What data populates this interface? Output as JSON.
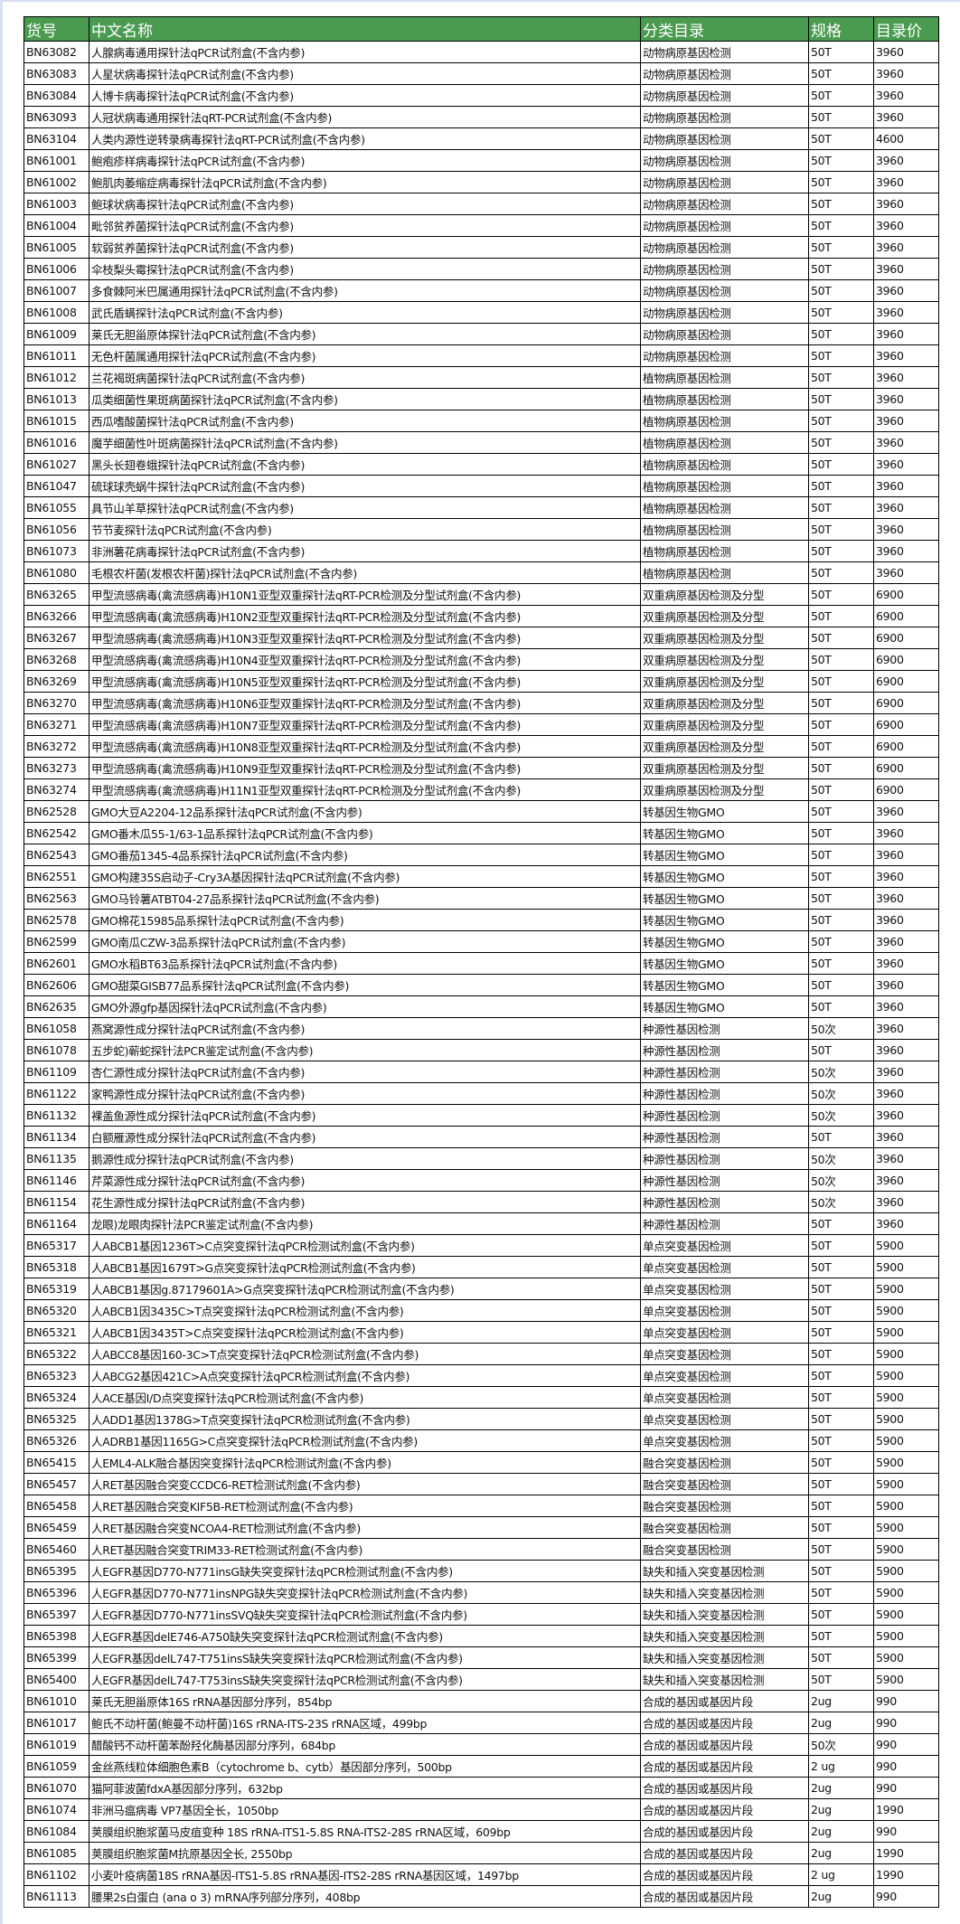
{
  "header": {
    "code": "货号",
    "name": "中文名称",
    "category": "分类目录",
    "spec": "规格",
    "price": "目录价"
  },
  "colors": {
    "header_bg": "#4a9b50",
    "header_text": "#ffffff"
  },
  "rows": [
    [
      "BN63082",
      "人腺病毒通用探针法qPCR试剂盒(不含内参)",
      "动物病原基因检测",
      "50T",
      "3960"
    ],
    [
      "BN63083",
      "人星状病毒探针法qPCR试剂盒(不含内参)",
      "动物病原基因检测",
      "50T",
      "3960"
    ],
    [
      "BN63084",
      "人博卡病毒探针法qPCR试剂盒(不含内参)",
      "动物病原基因检测",
      "50T",
      "3960"
    ],
    [
      "BN63093",
      "人冠状病毒通用探针法qRT-PCR试剂盒(不含内参)",
      "动物病原基因检测",
      "50T",
      "3960"
    ],
    [
      "BN63104",
      "人类内源性逆转录病毒探针法qRT-PCR试剂盒(不含内参)",
      "动物病原基因检测",
      "50T",
      "4600"
    ],
    [
      "BN61001",
      "鲍疱疹样病毒探针法qPCR试剂盒(不含内参)",
      "动物病原基因检测",
      "50T",
      "3960"
    ],
    [
      "BN61002",
      "鲍肌肉萎缩症病毒探针法qPCR试剂盒(不含内参)",
      "动物病原基因检测",
      "50T",
      "3960"
    ],
    [
      "BN61003",
      "鲍球状病毒探针法qPCR试剂盒(不含内参)",
      "动物病原基因检测",
      "50T",
      "3960"
    ],
    [
      "BN61004",
      "毗邻贫养菌探针法qPCR试剂盒(不含内参)",
      "动物病原基因检测",
      "50T",
      "3960"
    ],
    [
      "BN61005",
      "软弱贫养菌探针法qPCR试剂盒(不含内参)",
      "动物病原基因检测",
      "50T",
      "3960"
    ],
    [
      "BN61006",
      "伞枝梨头霉探针法qPCR试剂盒(不含内参)",
      "动物病原基因检测",
      "50T",
      "3960"
    ],
    [
      "BN61007",
      "多食棘阿米巴属通用探针法qPCR试剂盒(不含内参)",
      "动物病原基因检测",
      "50T",
      "3960"
    ],
    [
      "BN61008",
      "武氏盾螨探针法qPCR试剂盒(不含内参)",
      "动物病原基因检测",
      "50T",
      "3960"
    ],
    [
      "BN61009",
      "莱氏无胆甾原体探针法qPCR试剂盒(不含内参)",
      "动物病原基因检测",
      "50T",
      "3960"
    ],
    [
      "BN61011",
      "无色杆菌属通用探针法qPCR试剂盒(不含内参)",
      "动物病原基因检测",
      "50T",
      "3960"
    ],
    [
      "BN61012",
      "兰花褐斑病菌探针法qPCR试剂盒(不含内参)",
      "植物病原基因检测",
      "50T",
      "3960"
    ],
    [
      "BN61013",
      "瓜类细菌性果斑病菌探针法qPCR试剂盒(不含内参)",
      "植物病原基因检测",
      "50T",
      "3960"
    ],
    [
      "BN61015",
      "西瓜嗜酸菌探针法qPCR试剂盒(不含内参)",
      "植物病原基因检测",
      "50T",
      "3960"
    ],
    [
      "BN61016",
      "魔芋细菌性叶斑病菌探针法qPCR试剂盒(不含内参)",
      "植物病原基因检测",
      "50T",
      "3960"
    ],
    [
      "BN61027",
      "黑头长翅卷蛾探针法qPCR试剂盒(不含内参)",
      "植物病原基因检测",
      "50T",
      "3960"
    ],
    [
      "BN61047",
      "硫球球壳蜗牛探针法qPCR试剂盒(不含内参)",
      "植物病原基因检测",
      "50T",
      "3960"
    ],
    [
      "BN61055",
      "具节山羊草探针法qPCR试剂盒(不含内参)",
      "植物病原基因检测",
      "50T",
      "3960"
    ],
    [
      "BN61056",
      "节节麦探针法qPCR试剂盒(不含内参)",
      "植物病原基因检测",
      "50T",
      "3960"
    ],
    [
      "BN61073",
      "非洲薯花病毒探针法qPCR试剂盒(不含内参)",
      "植物病原基因检测",
      "50T",
      "3960"
    ],
    [
      "BN61080",
      "毛根农杆菌(发根农杆菌)探针法qPCR试剂盒(不含内参)",
      "植物病原基因检测",
      "50T",
      "3960"
    ],
    [
      "BN63265",
      "甲型流感病毒(禽流感病毒)H10N1亚型双重探针法qRT-PCR检测及分型试剂盒(不含内参)",
      "双重病原基因检测及分型",
      "50T",
      "6900"
    ],
    [
      "BN63266",
      "甲型流感病毒(禽流感病毒)H10N2亚型双重探针法qRT-PCR检测及分型试剂盒(不含内参)",
      "双重病原基因检测及分型",
      "50T",
      "6900"
    ],
    [
      "BN63267",
      "甲型流感病毒(禽流感病毒)H10N3亚型双重探针法qRT-PCR检测及分型试剂盒(不含内参)",
      "双重病原基因检测及分型",
      "50T",
      "6900"
    ],
    [
      "BN63268",
      "甲型流感病毒(禽流感病毒)H10N4亚型双重探针法qRT-PCR检测及分型试剂盒(不含内参)",
      "双重病原基因检测及分型",
      "50T",
      "6900"
    ],
    [
      "BN63269",
      "甲型流感病毒(禽流感病毒)H10N5亚型双重探针法qRT-PCR检测及分型试剂盒(不含内参)",
      "双重病原基因检测及分型",
      "50T",
      "6900"
    ],
    [
      "BN63270",
      "甲型流感病毒(禽流感病毒)H10N6亚型双重探针法qRT-PCR检测及分型试剂盒(不含内参)",
      "双重病原基因检测及分型",
      "50T",
      "6900"
    ],
    [
      "BN63271",
      "甲型流感病毒(禽流感病毒)H10N7亚型双重探针法qRT-PCR检测及分型试剂盒(不含内参)",
      "双重病原基因检测及分型",
      "50T",
      "6900"
    ],
    [
      "BN63272",
      "甲型流感病毒(禽流感病毒)H10N8亚型双重探针法qRT-PCR检测及分型试剂盒(不含内参)",
      "双重病原基因检测及分型",
      "50T",
      "6900"
    ],
    [
      "BN63273",
      "甲型流感病毒(禽流感病毒)H10N9亚型双重探针法qRT-PCR检测及分型试剂盒(不含内参)",
      "双重病原基因检测及分型",
      "50T",
      "6900"
    ],
    [
      "BN63274",
      "甲型流感病毒(禽流感病毒)H11N1亚型双重探针法qRT-PCR检测及分型试剂盒(不含内参)",
      "双重病原基因检测及分型",
      "50T",
      "6900"
    ],
    [
      "BN62528",
      "GMO大豆A2204-12品系探针法qPCR试剂盒(不含内参)",
      "转基因生物GMO",
      "50T",
      "3960"
    ],
    [
      "BN62542",
      "GMO番木瓜55-1/63-1品系探针法qPCR试剂盒(不含内参)",
      "转基因生物GMO",
      "50T",
      "3960"
    ],
    [
      "BN62543",
      "GMO番茄1345-4品系探针法qPCR试剂盒(不含内参)",
      "转基因生物GMO",
      "50T",
      "3960"
    ],
    [
      "BN62551",
      "GMO构建35S启动子-Cry3A基因探针法qPCR试剂盒(不含内参)",
      "转基因生物GMO",
      "50T",
      "3960"
    ],
    [
      "BN62563",
      "GMO马铃薯ATBT04-27品系探针法qPCR试剂盒(不含内参)",
      "转基因生物GMO",
      "50T",
      "3960"
    ],
    [
      "BN62578",
      "GMO棉花15985品系探针法qPCR试剂盒(不含内参)",
      "转基因生物GMO",
      "50T",
      "3960"
    ],
    [
      "BN62599",
      "GMO南瓜CZW-3品系探针法qPCR试剂盒(不含内参)",
      "转基因生物GMO",
      "50T",
      "3960"
    ],
    [
      "BN62601",
      "GMO水稻BT63品系探针法qPCR试剂盒(不含内参)",
      "转基因生物GMO",
      "50T",
      "3960"
    ],
    [
      "BN62606",
      "GMO甜菜GISB77品系探针法qPCR试剂盒(不含内参)",
      "转基因生物GMO",
      "50T",
      "3960"
    ],
    [
      "BN62635",
      "GMO外源gfp基因探针法qPCR试剂盒(不含内参)",
      "转基因生物GMO",
      "50T",
      "3960"
    ],
    [
      "BN61058",
      "燕窝源性成分探针法qPCR试剂盒(不含内参)",
      "种源性基因检测",
      "50次",
      "3960"
    ],
    [
      "BN61078",
      "五步蛇)蕲蛇探针法PCR鉴定试剂盒(不含内参)",
      "种源性基因检测",
      "50T",
      "3960"
    ],
    [
      "BN61109",
      "杏仁源性成分探针法qPCR试剂盒(不含内参)",
      "种源性基因检测",
      "50次",
      "3960"
    ],
    [
      "BN61122",
      "家鸭源性成分探针法qPCR试剂盒(不含内参)",
      "种源性基因检测",
      "50次",
      "3960"
    ],
    [
      "BN61132",
      "裸盖鱼源性成分探针法qPCR试剂盒(不含内参)",
      "种源性基因检测",
      "50次",
      "3960"
    ],
    [
      "BN61134",
      "白额雁源性成分探针法qPCR试剂盒(不含内参)",
      "种源性基因检测",
      "50T",
      "3960"
    ],
    [
      "BN61135",
      "鹅源性成分探针法qPCR试剂盒(不含内参)",
      "种源性基因检测",
      "50次",
      "3960"
    ],
    [
      "BN61146",
      "芹菜源性成分探针法qPCR试剂盒(不含内参)",
      "种源性基因检测",
      "50次",
      "3960"
    ],
    [
      "BN61154",
      "花生源性成分探针法qPCR试剂盒(不含内参)",
      "种源性基因检测",
      "50次",
      "3960"
    ],
    [
      "BN61164",
      "龙眼)龙眼肉探针法PCR鉴定试剂盒(不含内参)",
      "种源性基因检测",
      "50T",
      "3960"
    ],
    [
      "BN65317",
      "人ABCB1基因1236T>C点突变探针法qPCR检测试剂盒(不含内参)",
      "单点突变基因检测",
      "50T",
      "5900"
    ],
    [
      "BN65318",
      "人ABCB1基因1679T>G点突变探针法qPCR检测试剂盒(不含内参)",
      "单点突变基因检测",
      "50T",
      "5900"
    ],
    [
      "BN65319",
      "人ABCB1基因g.87179601A>G点突变探针法qPCR检测试剂盒(不含内参)",
      "单点突变基因检测",
      "50T",
      "5900"
    ],
    [
      "BN65320",
      "人ABCB1因3435C>T点突变探针法qPCR检测试剂盒(不含内参)",
      "单点突变基因检测",
      "50T",
      "5900"
    ],
    [
      "BN65321",
      "人ABCB1因3435T>C点突变探针法qPCR检测试剂盒(不含内参)",
      "单点突变基因检测",
      "50T",
      "5900"
    ],
    [
      "BN65322",
      "人ABCC8基因160-3C>T点突变探针法qPCR检测试剂盒(不含内参)",
      "单点突变基因检测",
      "50T",
      "5900"
    ],
    [
      "BN65323",
      "人ABCG2基因421C>A点突变探针法qPCR检测试剂盒(不含内参)",
      "单点突变基因检测",
      "50T",
      "5900"
    ],
    [
      "BN65324",
      "人ACE基因I/D点突变探针法qPCR检测试剂盒(不含内参)",
      "单点突变基因检测",
      "50T",
      "5900"
    ],
    [
      "BN65325",
      "人ADD1基因1378G>T点突变探针法qPCR检测试剂盒(不含内参)",
      "单点突变基因检测",
      "50T",
      "5900"
    ],
    [
      "BN65326",
      "人ADRB1基因1165G>C点突变探针法qPCR检测试剂盒(不含内参)",
      "单点突变基因检测",
      "50T",
      "5900"
    ],
    [
      "BN65415",
      "人EML4-ALK融合基因突变探针法qPCR检测试剂盒(不含内参)",
      "融合突变基因检测",
      "50T",
      "5900"
    ],
    [
      "BN65457",
      "人RET基因融合突变CCDC6-RET检测试剂盒(不含内参)",
      "融合突变基因检测",
      "50T",
      "5900"
    ],
    [
      "BN65458",
      "人RET基因融合突变KIF5B-RET检测试剂盒(不含内参)",
      "融合突变基因检测",
      "50T",
      "5900"
    ],
    [
      "BN65459",
      "人RET基因融合突变NCOA4-RET检测试剂盒(不含内参)",
      "融合突变基因检测",
      "50T",
      "5900"
    ],
    [
      "BN65460",
      "人RET基因融合突变TRIM33-RET检测试剂盒(不含内参)",
      "融合突变基因检测",
      "50T",
      "5900"
    ],
    [
      "BN65395",
      "人EGFR基因D770-N771insG缺失突变探针法qPCR检测试剂盒(不含内参)",
      "缺失和插入突变基因检测",
      "50T",
      "5900"
    ],
    [
      "BN65396",
      "人EGFR基因D770-N771insNPG缺失突变探针法qPCR检测试剂盒(不含内参)",
      "缺失和插入突变基因检测",
      "50T",
      "5900"
    ],
    [
      "BN65397",
      "人EGFR基因D770-N771insSVQ缺失突变探针法qPCR检测试剂盒(不含内参)",
      "缺失和插入突变基因检测",
      "50T",
      "5900"
    ],
    [
      "BN65398",
      "人EGFR基因delE746-A750缺失突变探针法qPCR检测试剂盒(不含内参)",
      "缺失和插入突变基因检测",
      "50T",
      "5900"
    ],
    [
      "BN65399",
      "人EGFR基因delL747-T751insS缺失突变探针法qPCR检测试剂盒(不含内参)",
      "缺失和插入突变基因检测",
      "50T",
      "5900"
    ],
    [
      "BN65400",
      "人EGFR基因delL747-T753insS缺失突变探针法qPCR检测试剂盒(不含内参)",
      "缺失和插入突变基因检测",
      "50T",
      "5900"
    ],
    [
      "BN61010",
      "莱氏无胆甾原体16S rRNA基因部分序列，854bp",
      "合成的基因或基因片段",
      "2ug",
      "990"
    ],
    [
      "BN61017",
      "鲍氏不动杆菌(鲍曼不动杆菌)16S rRNA-ITS-23S rRNA区域，499bp",
      "合成的基因或基因片段",
      "2ug",
      "990"
    ],
    [
      "BN61019",
      "醋酸钙不动杆菌苯酚羟化酶基因部分序列，684bp",
      "合成的基因或基因片段",
      "50次",
      "990"
    ],
    [
      "BN61059",
      "金丝燕线粒体细胞色素B（cytochrome b、cytb）基因部分序列，500bp",
      "合成的基因或基因片段",
      "2 ug",
      "990"
    ],
    [
      "BN61070",
      "猫阿菲波菌fdxA基因部分序列，632bp",
      "合成的基因或基因片段",
      "2ug",
      "990"
    ],
    [
      "BN61074",
      "非洲马瘟病毒 VP7基因全长，1050bp",
      "合成的基因或基因片段",
      "2ug",
      "1990"
    ],
    [
      "BN61084",
      "荚膜组织胞浆菌马皮疽变种 18S rRNA-ITS1-5.8S RNA-ITS2-28S rRNA区域，609bp",
      "合成的基因或基因片段",
      "2ug",
      "990"
    ],
    [
      "BN61085",
      "荚膜组织胞浆菌M抗原基因全长, 2550bp",
      "合成的基因或基因片段",
      "2ug",
      "1990"
    ],
    [
      "BN61102",
      "小麦叶疫病菌18S rRNA基因-ITS1-5.8S rRNA基因-ITS2-28S rRNA基因区域，1497bp",
      "合成的基因或基因片段",
      "2 ug",
      "1990"
    ],
    [
      "BN61113",
      "腰果2s白蛋白 (ana o 3) mRNA序列部分序列，408bp",
      "合成的基因或基因片段",
      "2ug",
      "990"
    ]
  ]
}
